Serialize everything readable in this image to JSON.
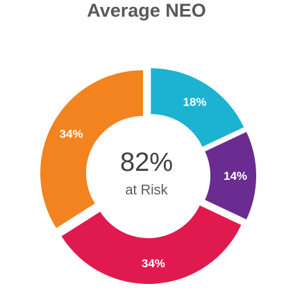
{
  "title": "Average NEO",
  "center": {
    "value": "82%",
    "caption": "at Risk"
  },
  "chart_data": {
    "type": "pie",
    "donut": true,
    "exploded": true,
    "title": "Average NEO",
    "slices": [
      {
        "label": "18%",
        "value": 18,
        "color": "#1BB3D1"
      },
      {
        "label": "14%",
        "value": 14,
        "color": "#6A2C91"
      },
      {
        "label": "34%",
        "value": 34,
        "color": "#E01A4F"
      },
      {
        "label": "34%",
        "value": 34,
        "color": "#F2831F"
      }
    ]
  }
}
